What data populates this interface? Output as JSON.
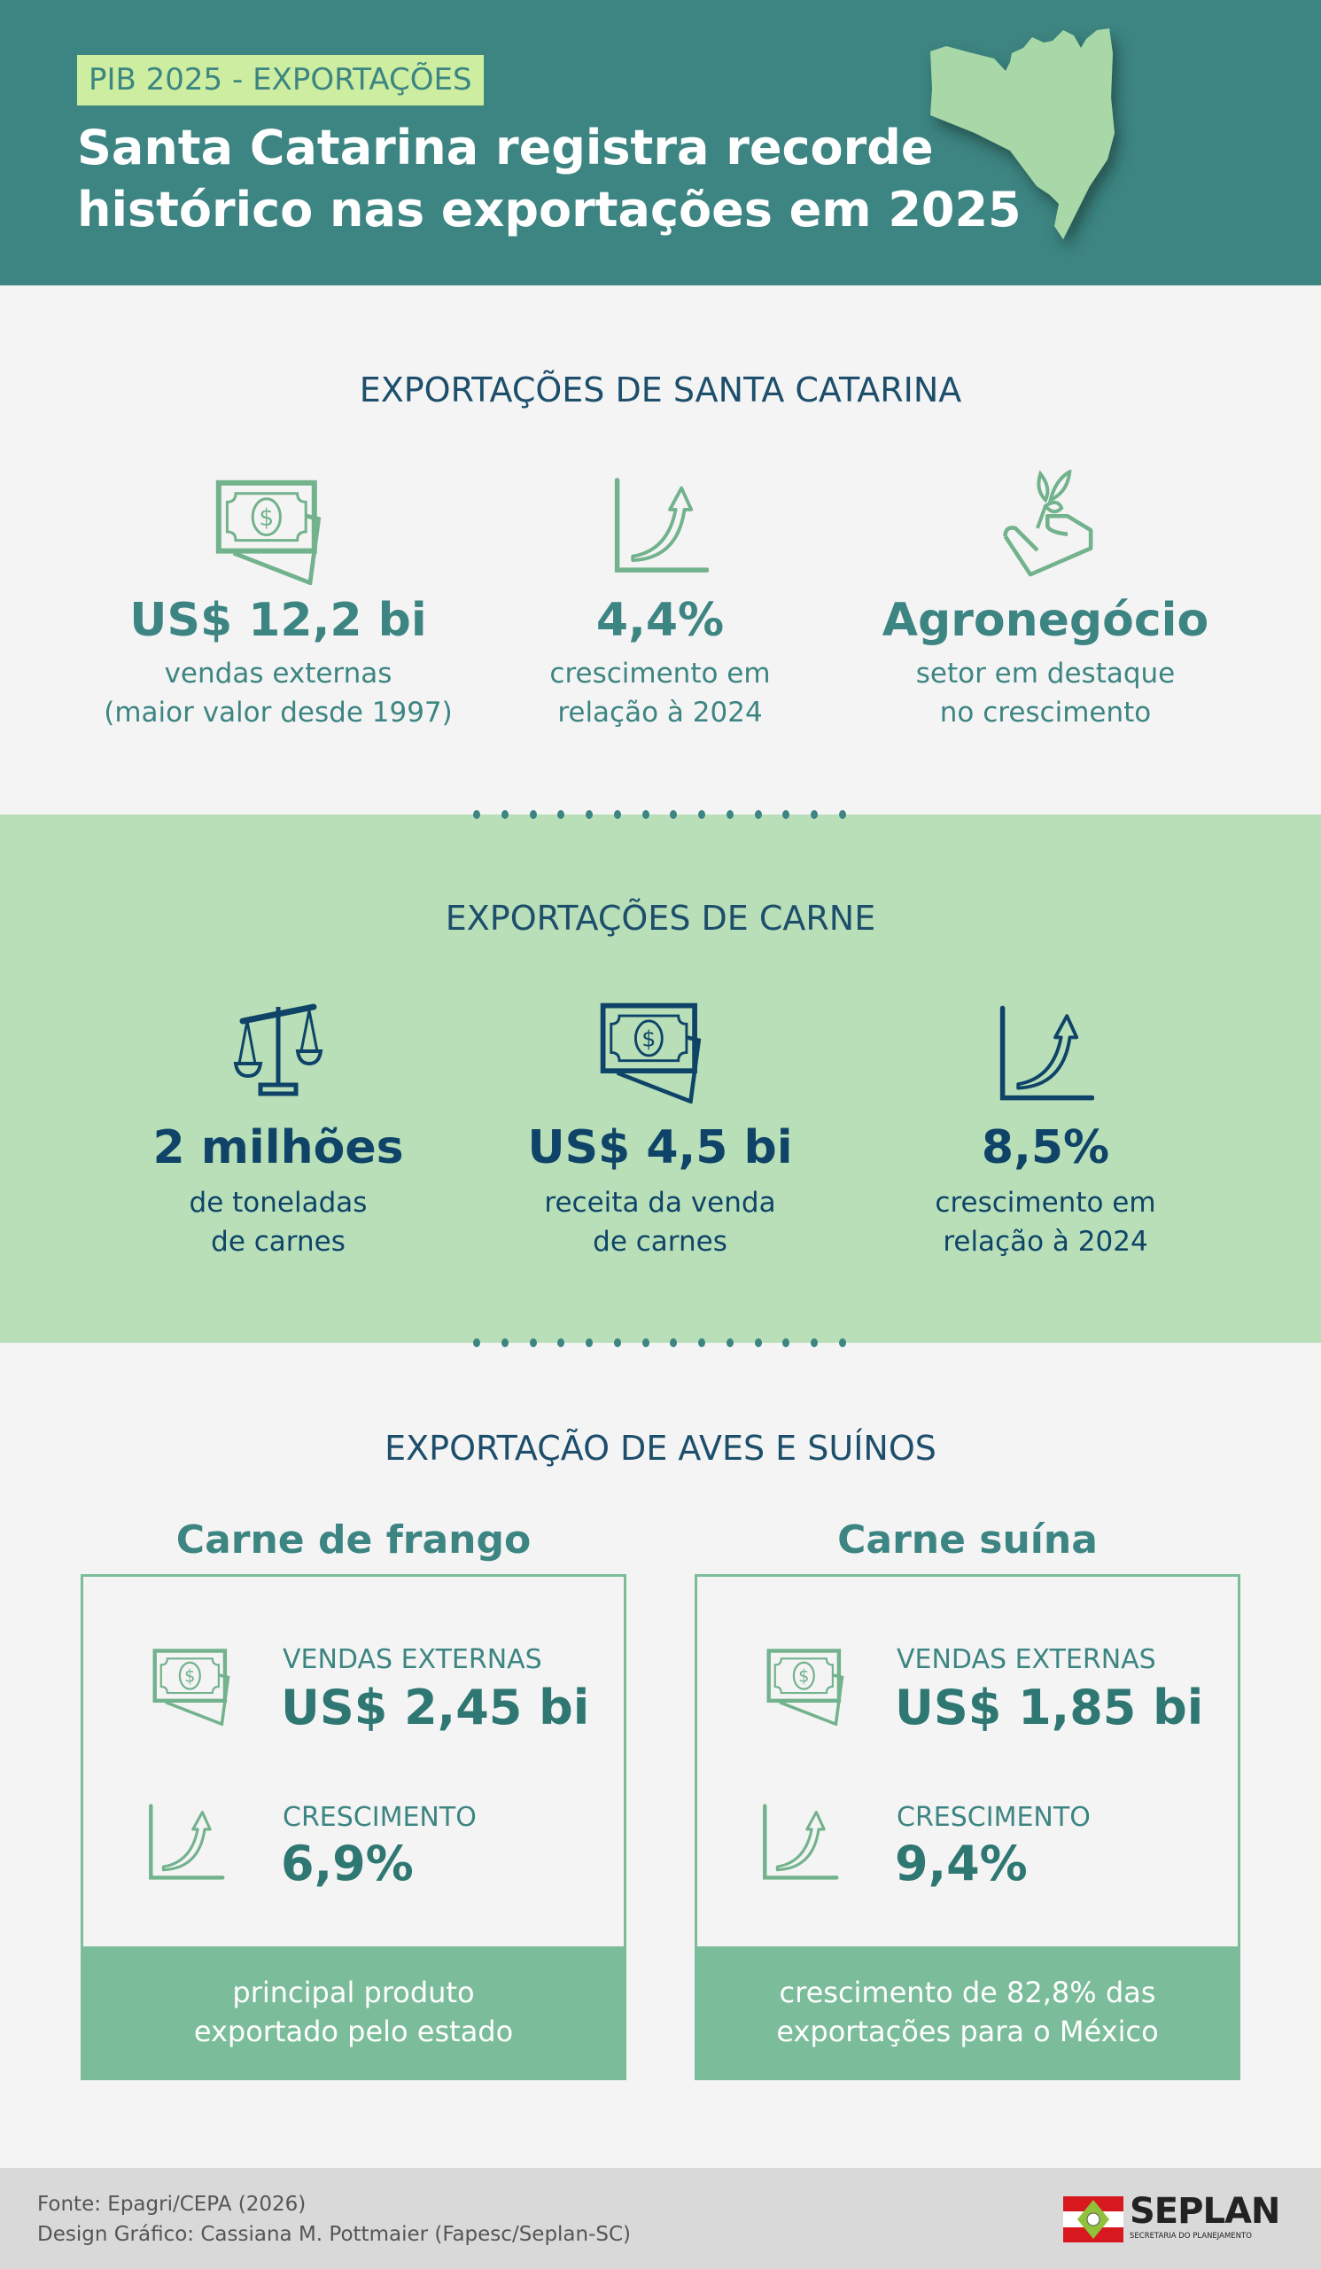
{
  "header": {
    "badge": "PIB 2025 - EXPORTAÇÕES",
    "title_line1": "Santa Catarina registra recorde",
    "title_line2": "histórico nas exportações em 2025"
  },
  "section1": {
    "heading": "EXPORTAÇÕES DE SANTA CATARINA",
    "items": [
      {
        "icon": "money-icon",
        "value": "US$ 12,2 bi",
        "line1": "vendas externas",
        "line2": "(maior valor desde 1997)"
      },
      {
        "icon": "growth-chart-icon",
        "value": "4,4%",
        "line1": "crescimento em",
        "line2": "relação à 2024"
      },
      {
        "icon": "plant-hand-icon",
        "value": "Agronegócio",
        "line1": "setor em destaque",
        "line2": "no crescimento"
      }
    ]
  },
  "section2": {
    "heading": "EXPORTAÇÕES DE CARNE",
    "items": [
      {
        "icon": "scale-icon",
        "value": "2 milhões",
        "line1": "de toneladas",
        "line2": "de carnes"
      },
      {
        "icon": "money-icon",
        "value": "US$ 4,5 bi",
        "line1": "receita da venda",
        "line2": "de carnes"
      },
      {
        "icon": "growth-chart-icon",
        "value": "8,5%",
        "line1": "crescimento em",
        "line2": "relação à 2024"
      }
    ]
  },
  "section3": {
    "heading": "EXPORTAÇÃO DE AVES E SUÍNOS",
    "cards": [
      {
        "title": "Carne de frango",
        "sales_label": "VENDAS EXTERNAS",
        "sales_value": "US$ 2,45 bi",
        "growth_label": "CRESCIMENTO",
        "growth_value": "6,9%",
        "note_line1": "principal produto",
        "note_line2": "exportado pelo estado"
      },
      {
        "title": "Carne suína",
        "sales_label": "VENDAS EXTERNAS",
        "sales_value": "US$ 1,85 bi",
        "growth_label": "CRESCIMENTO",
        "growth_value": "9,4%",
        "note_line1": "crescimento de 82,8% das",
        "note_line2": "exportações para o México"
      }
    ]
  },
  "footer": {
    "source": "Fonte: Epagri/CEPA (2026)",
    "credit": "Design Gráfico: Cassiana M. Pottmaier (Fapesc/Seplan-SC)",
    "logo_text": "SEPLAN",
    "logo_subtext": "SECRETARIA DO PLANEJAMENTO"
  },
  "colors": {
    "header_bg": "#3d8582",
    "badge_bg": "#cdeea0",
    "map": "#a8d8a8",
    "teal_text": "#3d8582",
    "navy_text": "#0f4468",
    "green_band": "#b8dfb8",
    "icon_green": "#72b28c",
    "card_accent": "#7bbd9a",
    "footer_bg": "#d9d9d9"
  }
}
